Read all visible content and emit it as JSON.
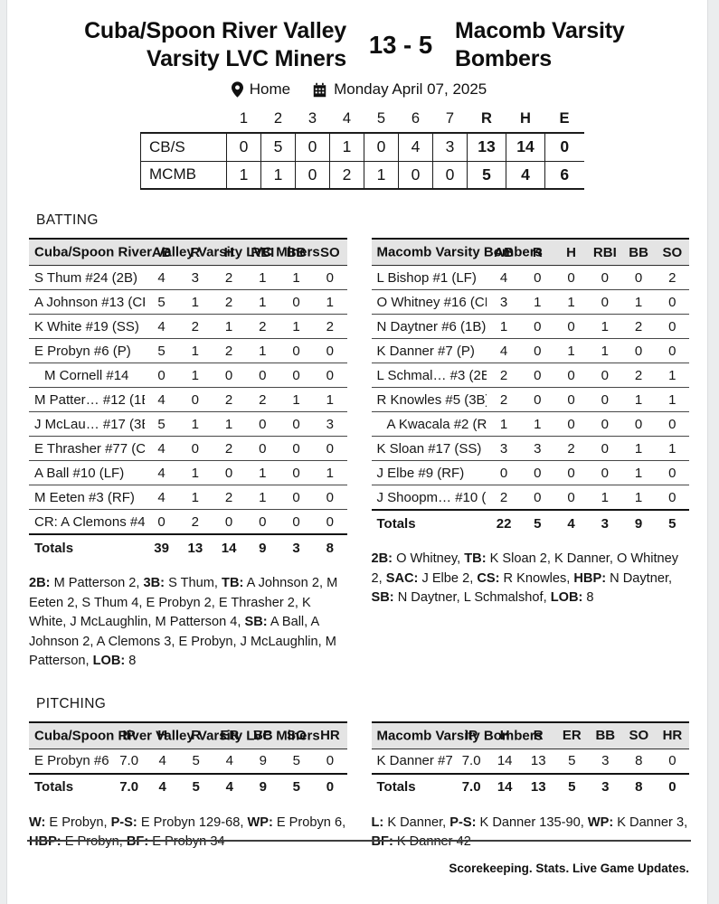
{
  "header": {
    "away_line1": "Cuba/Spoon River Valley",
    "away_line2": "Varsity LVC Miners",
    "score": "13 - 5",
    "home_line1": "Macomb Varsity",
    "home_line2": "Bombers",
    "location_icon": "location-pin-icon",
    "location_label": "Home",
    "calendar_icon": "calendar-icon",
    "date_label": "Monday April 07, 2025"
  },
  "line_score": {
    "innings": [
      "1",
      "2",
      "3",
      "4",
      "5",
      "6",
      "7"
    ],
    "summary_cols": [
      "R",
      "H",
      "E"
    ],
    "rows": [
      {
        "team": "CB/S",
        "innings": [
          "0",
          "5",
          "0",
          "1",
          "0",
          "4",
          "3"
        ],
        "r": "13",
        "h": "14",
        "e": "0"
      },
      {
        "team": "MCMB",
        "innings": [
          "1",
          "1",
          "0",
          "2",
          "1",
          "0",
          "0"
        ],
        "r": "5",
        "h": "4",
        "e": "6"
      }
    ]
  },
  "sections": {
    "batting_label": "BATTING",
    "pitching_label": "PITCHING"
  },
  "batting": {
    "columns": [
      "AB",
      "R",
      "H",
      "RBI",
      "BB",
      "SO"
    ],
    "cbs": {
      "team_header": "Cuba/Spoon River Valley Varsity LVC Miners",
      "rows": [
        {
          "name": "S Thum #24 (2B)",
          "indent": false,
          "stats": [
            "4",
            "3",
            "2",
            "1",
            "1",
            "0"
          ]
        },
        {
          "name": "A Johnson #13 (CF)",
          "indent": false,
          "stats": [
            "5",
            "1",
            "2",
            "1",
            "0",
            "1"
          ]
        },
        {
          "name": "K White #19 (SS)",
          "indent": false,
          "stats": [
            "4",
            "2",
            "1",
            "2",
            "1",
            "2"
          ]
        },
        {
          "name": "E Probyn #6 (P)",
          "indent": false,
          "stats": [
            "5",
            "1",
            "2",
            "1",
            "0",
            "0"
          ]
        },
        {
          "name": "M Cornell #14",
          "indent": true,
          "stats": [
            "0",
            "1",
            "0",
            "0",
            "0",
            "0"
          ]
        },
        {
          "name": "M Patter… #12 (1B)",
          "indent": false,
          "stats": [
            "4",
            "0",
            "2",
            "2",
            "1",
            "1"
          ]
        },
        {
          "name": "J McLau… #17 (3B)",
          "indent": false,
          "stats": [
            "5",
            "1",
            "1",
            "0",
            "0",
            "3"
          ]
        },
        {
          "name": "E Thrasher #77 (C)",
          "indent": false,
          "stats": [
            "4",
            "0",
            "2",
            "0",
            "0",
            "0"
          ]
        },
        {
          "name": "A Ball #10 (LF)",
          "indent": false,
          "stats": [
            "4",
            "1",
            "0",
            "1",
            "0",
            "1"
          ]
        },
        {
          "name": "M Eeten #3 (RF)",
          "indent": false,
          "stats": [
            "4",
            "1",
            "2",
            "1",
            "0",
            "0"
          ]
        },
        {
          "name": "CR: A Clemons #4",
          "indent": false,
          "stats": [
            "0",
            "2",
            "0",
            "0",
            "0",
            "0"
          ]
        }
      ],
      "totals": {
        "label": "Totals",
        "stats": [
          "39",
          "13",
          "14",
          "9",
          "3",
          "8"
        ]
      },
      "notes": [
        {
          "label": "2B:",
          "text": "M Patterson 2,"
        },
        {
          "label": "3B:",
          "text": "S Thum,"
        },
        {
          "label": "TB:",
          "text": "A Johnson 2, M Eeten 2, S Thum 4, E Probyn 2, E Thrasher 2, K White, J McLaughlin, M Patterson 4,"
        },
        {
          "label": "SB:",
          "text": "A Ball, A Johnson 2, A Clemons 3, E Probyn, J McLaughlin, M Patterson,"
        },
        {
          "label": "LOB:",
          "text": "8"
        }
      ]
    },
    "mcmb": {
      "team_header": "Macomb Varsity Bombers",
      "rows": [
        {
          "name": "L Bishop #1 (LF)",
          "indent": false,
          "stats": [
            "4",
            "0",
            "0",
            "0",
            "0",
            "2"
          ]
        },
        {
          "name": "O Whitney #16 (CF)",
          "indent": false,
          "stats": [
            "3",
            "1",
            "1",
            "0",
            "1",
            "0"
          ]
        },
        {
          "name": "N Daytner #6 (1B)",
          "indent": false,
          "stats": [
            "1",
            "0",
            "0",
            "1",
            "2",
            "0"
          ]
        },
        {
          "name": "K Danner #7 (P)",
          "indent": false,
          "stats": [
            "4",
            "0",
            "1",
            "1",
            "0",
            "0"
          ]
        },
        {
          "name": "L Schmal… #3 (2B)",
          "indent": false,
          "stats": [
            "2",
            "0",
            "0",
            "0",
            "2",
            "1"
          ]
        },
        {
          "name": "R Knowles #5 (3B)",
          "indent": false,
          "stats": [
            "2",
            "0",
            "0",
            "0",
            "1",
            "1"
          ]
        },
        {
          "name": "A Kwacala #2 (RF)",
          "indent": true,
          "stats": [
            "1",
            "1",
            "0",
            "0",
            "0",
            "0"
          ]
        },
        {
          "name": "K Sloan #17 (SS)",
          "indent": false,
          "stats": [
            "3",
            "3",
            "2",
            "0",
            "1",
            "1"
          ]
        },
        {
          "name": "J Elbe #9 (RF)",
          "indent": false,
          "stats": [
            "0",
            "0",
            "0",
            "0",
            "1",
            "0"
          ]
        },
        {
          "name": "J Shoopm… #10 (C)",
          "indent": false,
          "stats": [
            "2",
            "0",
            "0",
            "1",
            "1",
            "0"
          ]
        }
      ],
      "totals": {
        "label": "Totals",
        "stats": [
          "22",
          "5",
          "4",
          "3",
          "9",
          "5"
        ]
      },
      "notes": [
        {
          "label": "2B:",
          "text": "O Whitney,"
        },
        {
          "label": "TB:",
          "text": "K Sloan 2, K Danner, O Whitney 2,"
        },
        {
          "label": "SAC:",
          "text": "J Elbe 2,"
        },
        {
          "label": "CS:",
          "text": "R Knowles,"
        },
        {
          "label": "HBP:",
          "text": "N Daytner,"
        },
        {
          "label": "SB:",
          "text": "N Daytner, L Schmalshof,"
        },
        {
          "label": "LOB:",
          "text": "8"
        }
      ]
    }
  },
  "pitching": {
    "columns": [
      "IP",
      "H",
      "R",
      "ER",
      "BB",
      "SO",
      "HR"
    ],
    "cbs": {
      "team_header": "Cuba/Spoon River Valley Varsity LVC Miners",
      "rows": [
        {
          "name": "E Probyn #6",
          "indent": false,
          "stats": [
            "7.0",
            "4",
            "5",
            "4",
            "9",
            "5",
            "0"
          ]
        }
      ],
      "totals": {
        "label": "Totals",
        "stats": [
          "7.0",
          "4",
          "5",
          "4",
          "9",
          "5",
          "0"
        ]
      },
      "notes": [
        {
          "label": "W:",
          "text": "E Probyn,"
        },
        {
          "label": "P-S:",
          "text": "E Probyn 129-68,"
        },
        {
          "label": "WP:",
          "text": "E Probyn 6,"
        },
        {
          "label": "HBP:",
          "text": "E Probyn,"
        },
        {
          "label": "BF:",
          "text": "E Probyn 34"
        }
      ]
    },
    "mcmb": {
      "team_header": "Macomb Varsity Bombers",
      "rows": [
        {
          "name": "K Danner #7",
          "indent": false,
          "stats": [
            "7.0",
            "14",
            "13",
            "5",
            "3",
            "8",
            "0"
          ]
        }
      ],
      "totals": {
        "label": "Totals",
        "stats": [
          "7.0",
          "14",
          "13",
          "5",
          "3",
          "8",
          "0"
        ]
      },
      "notes": [
        {
          "label": "L:",
          "text": "K Danner,"
        },
        {
          "label": "P-S:",
          "text": "K Danner 135-90,"
        },
        {
          "label": "WP:",
          "text": "K Danner 3,"
        },
        {
          "label": "BF:",
          "text": "K Danner 42"
        }
      ]
    }
  },
  "footer": {
    "tagline": "Scorekeeping. Stats. Live Game Updates."
  },
  "colors": {
    "header_bar": "#e4e4e4",
    "rule_dark": "#131313",
    "rule_light": "#474747",
    "text": "#141414"
  }
}
